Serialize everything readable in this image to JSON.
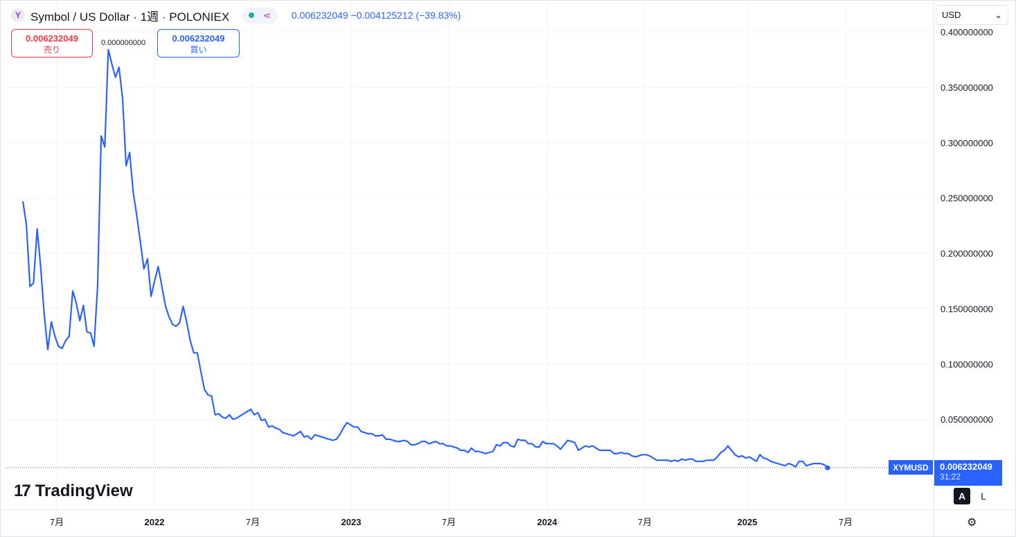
{
  "header": {
    "logo_letter": "Y",
    "title": "Symbol / US Dollar · 1週 · POLONIEX",
    "price": "0.006232049",
    "change": "−0.004125212",
    "change_pct": "(−39.83%)",
    "status_icon": "market-open-dot",
    "share_icon": "share-icon"
  },
  "currency_select": {
    "value": "USD"
  },
  "trade": {
    "sell_price": "0.006232049",
    "sell_label": "売り",
    "spread": "0.000000000",
    "buy_price": "0.006232049",
    "buy_label": "買い"
  },
  "watermark": {
    "mark": "17",
    "text": "TradingView"
  },
  "price_scale": {
    "symbol": "XYMUSD",
    "last_value": "0.006232049",
    "countdown": "31:22",
    "auto_label": "A",
    "log_label": "L"
  },
  "colors": {
    "line": "#2962ff",
    "grid": "#f0f3fa",
    "text": "#131722"
  },
  "chart_data": {
    "type": "line",
    "series": [
      {
        "values": [
          0.247,
          0.226,
          0.17,
          0.173,
          0.222,
          0.188,
          0.145,
          0.113,
          0.138,
          0.125,
          0.116,
          0.114,
          0.121,
          0.125,
          0.166,
          0.155,
          0.139,
          0.153,
          0.129,
          0.128,
          0.116,
          0.171,
          0.306,
          0.296,
          0.384,
          0.371,
          0.359,
          0.368,
          0.34,
          0.279,
          0.291,
          0.255,
          0.234,
          0.21,
          0.186,
          0.195,
          0.161,
          0.175,
          0.188,
          0.171,
          0.153,
          0.143,
          0.136,
          0.134,
          0.137,
          0.152,
          0.138,
          0.121,
          0.11,
          0.11,
          0.093,
          0.077,
          0.072,
          0.071,
          0.054,
          0.055,
          0.052,
          0.051,
          0.054,
          0.05,
          0.051,
          0.053,
          0.055,
          0.057,
          0.059,
          0.054,
          0.056,
          0.049,
          0.05,
          0.043,
          0.044,
          0.042,
          0.041,
          0.038,
          0.037,
          0.036,
          0.035,
          0.037,
          0.039,
          0.034,
          0.035,
          0.032,
          0.036,
          0.035,
          0.034,
          0.033,
          0.032,
          0.031,
          0.032,
          0.036,
          0.042,
          0.047,
          0.045,
          0.043,
          0.043,
          0.039,
          0.038,
          0.037,
          0.037,
          0.035,
          0.035,
          0.036,
          0.032,
          0.032,
          0.031,
          0.03,
          0.03,
          0.031,
          0.03,
          0.027,
          0.027,
          0.028,
          0.03,
          0.03,
          0.028,
          0.029,
          0.03,
          0.028,
          0.028,
          0.026,
          0.026,
          0.025,
          0.024,
          0.022,
          0.022,
          0.02,
          0.024,
          0.021,
          0.021,
          0.02,
          0.019,
          0.02,
          0.021,
          0.027,
          0.026,
          0.029,
          0.029,
          0.026,
          0.025,
          0.032,
          0.031,
          0.031,
          0.028,
          0.028,
          0.025,
          0.025,
          0.03,
          0.028,
          0.028,
          0.028,
          0.026,
          0.023,
          0.027,
          0.031,
          0.03,
          0.029,
          0.022,
          0.024,
          0.026,
          0.025,
          0.026,
          0.024,
          0.022,
          0.022,
          0.022,
          0.022,
          0.019,
          0.019,
          0.02,
          0.019,
          0.019,
          0.017,
          0.016,
          0.017,
          0.018,
          0.018,
          0.017,
          0.015,
          0.013,
          0.013,
          0.013,
          0.013,
          0.012,
          0.013,
          0.012,
          0.014,
          0.013,
          0.014,
          0.014,
          0.012,
          0.012,
          0.012,
          0.013,
          0.013,
          0.013,
          0.016,
          0.02,
          0.022,
          0.026,
          0.022,
          0.018,
          0.016,
          0.017,
          0.015,
          0.016,
          0.014,
          0.012,
          0.018,
          0.015,
          0.014,
          0.012,
          0.011,
          0.01,
          0.009,
          0.008,
          0.01,
          0.009,
          0.007,
          0.012,
          0.012,
          0.008,
          0.009,
          0.01,
          0.01,
          0.01,
          0.009,
          0.0062
        ],
        "color": "#2962ff"
      }
    ],
    "x_ticks": [
      "7月",
      "2022",
      "7月",
      "2023",
      "7月",
      "2024",
      "7月",
      "2025",
      "7月"
    ],
    "y_ticks": [
      "0.400000000",
      "0.350000000",
      "0.300000000",
      "0.250000000",
      "0.200000000",
      "0.150000000",
      "0.100000000",
      "0.050000000"
    ],
    "ylim": [
      0,
      0.4
    ],
    "grid": true,
    "last_value": 0.006232049
  }
}
